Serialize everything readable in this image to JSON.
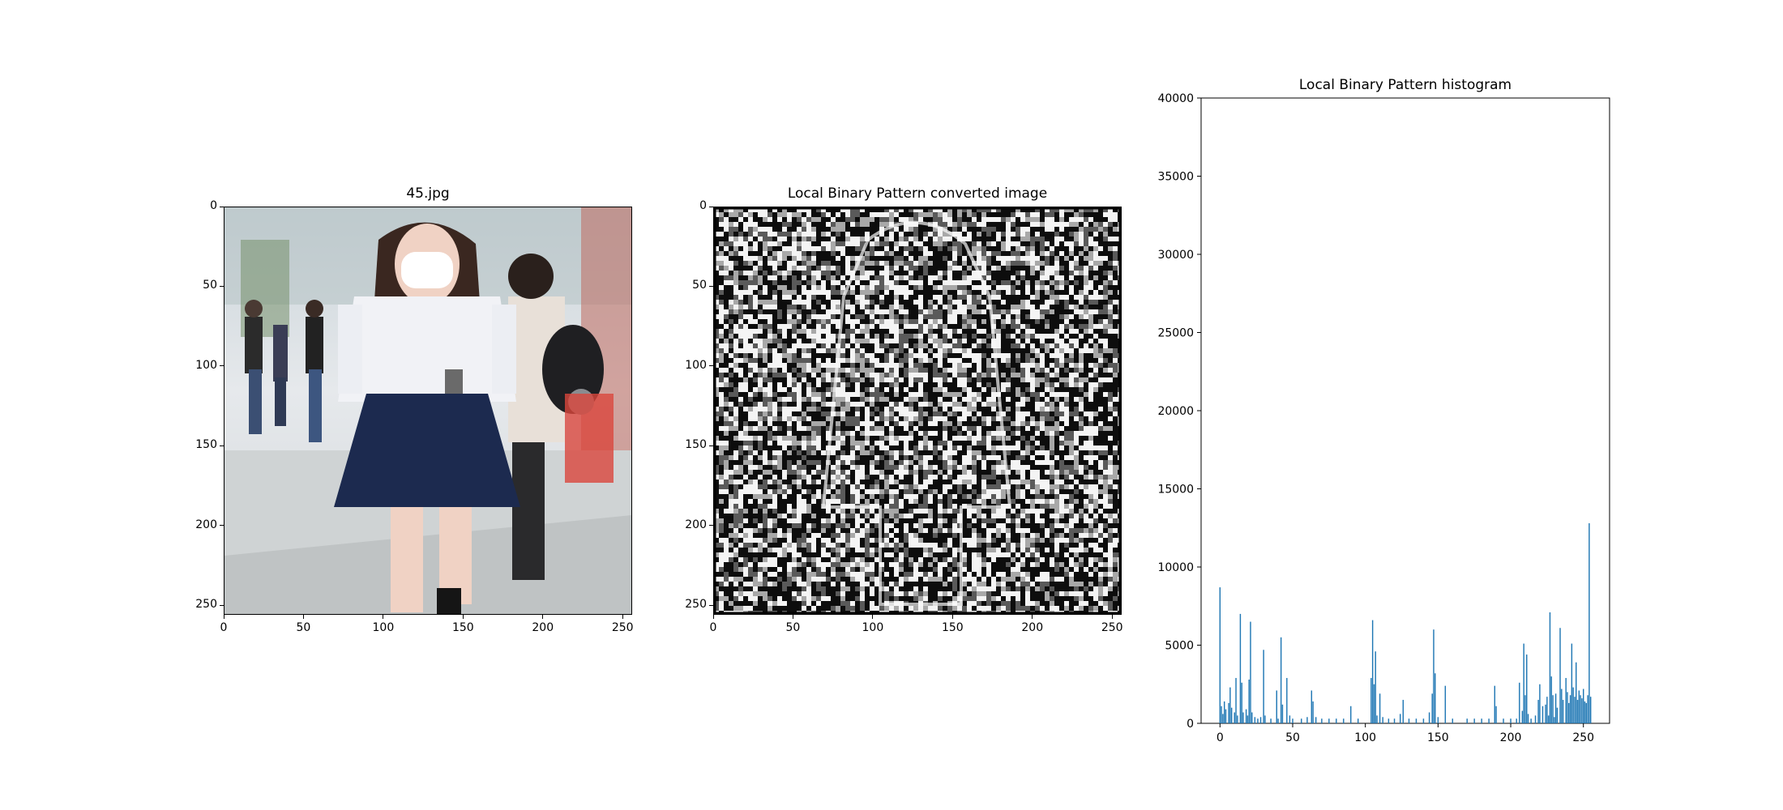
{
  "figure": {
    "panels": [
      {
        "id": "photo",
        "title": "45.jpg",
        "image_description_icon": "photo-image",
        "xticks": [
          "0",
          "50",
          "100",
          "150",
          "200",
          "250"
        ],
        "yticks": [
          "0",
          "50",
          "100",
          "150",
          "200",
          "250"
        ]
      },
      {
        "id": "lbp",
        "title": "Local Binary Pattern converted image",
        "image_description_icon": "lbp-texture-image",
        "xticks": [
          "0",
          "50",
          "100",
          "150",
          "200",
          "250"
        ],
        "yticks": [
          "0",
          "50",
          "100",
          "150",
          "200",
          "250"
        ]
      }
    ],
    "colors": {
      "bar": "#1f77b4",
      "skirt": "#1c2a4f",
      "shirt": "#f1f2f6",
      "hair": "#3a2720",
      "skin": "#f0d2c4",
      "floor": "#d9dde0"
    }
  },
  "chart_data": {
    "type": "bar",
    "title": "Local Binary Pattern histogram",
    "xlabel": "",
    "ylabel": "",
    "xlim": [
      -13,
      268
    ],
    "ylim": [
      0,
      40000
    ],
    "xticks": [
      0,
      50,
      100,
      150,
      200,
      250
    ],
    "yticks": [
      0,
      5000,
      10000,
      15000,
      20000,
      25000,
      30000,
      35000,
      40000
    ],
    "grid": false,
    "bins": [
      {
        "x": 0,
        "value": 8700
      },
      {
        "x": 1,
        "value": 1100
      },
      {
        "x": 2,
        "value": 600
      },
      {
        "x": 3,
        "value": 1400
      },
      {
        "x": 4,
        "value": 900
      },
      {
        "x": 6,
        "value": 1300
      },
      {
        "x": 7,
        "value": 2300
      },
      {
        "x": 8,
        "value": 1000
      },
      {
        "x": 10,
        "value": 700
      },
      {
        "x": 11,
        "value": 2900
      },
      {
        "x": 12,
        "value": 500
      },
      {
        "x": 14,
        "value": 7000
      },
      {
        "x": 15,
        "value": 2600
      },
      {
        "x": 16,
        "value": 700
      },
      {
        "x": 18,
        "value": 900
      },
      {
        "x": 19,
        "value": 500
      },
      {
        "x": 20,
        "value": 2800
      },
      {
        "x": 21,
        "value": 6500
      },
      {
        "x": 22,
        "value": 700
      },
      {
        "x": 24,
        "value": 400
      },
      {
        "x": 26,
        "value": 300
      },
      {
        "x": 28,
        "value": 400
      },
      {
        "x": 30,
        "value": 4700
      },
      {
        "x": 31,
        "value": 500
      },
      {
        "x": 35,
        "value": 300
      },
      {
        "x": 39,
        "value": 2100
      },
      {
        "x": 40,
        "value": 300
      },
      {
        "x": 42,
        "value": 5500
      },
      {
        "x": 43,
        "value": 1200
      },
      {
        "x": 46,
        "value": 2900
      },
      {
        "x": 48,
        "value": 500
      },
      {
        "x": 50,
        "value": 300
      },
      {
        "x": 56,
        "value": 300
      },
      {
        "x": 60,
        "value": 400
      },
      {
        "x": 63,
        "value": 2100
      },
      {
        "x": 64,
        "value": 1400
      },
      {
        "x": 66,
        "value": 400
      },
      {
        "x": 70,
        "value": 300
      },
      {
        "x": 75,
        "value": 300
      },
      {
        "x": 80,
        "value": 300
      },
      {
        "x": 85,
        "value": 300
      },
      {
        "x": 90,
        "value": 1100
      },
      {
        "x": 95,
        "value": 300
      },
      {
        "x": 104,
        "value": 2900
      },
      {
        "x": 105,
        "value": 6600
      },
      {
        "x": 106,
        "value": 2500
      },
      {
        "x": 107,
        "value": 4600
      },
      {
        "x": 108,
        "value": 500
      },
      {
        "x": 110,
        "value": 1900
      },
      {
        "x": 112,
        "value": 400
      },
      {
        "x": 116,
        "value": 300
      },
      {
        "x": 120,
        "value": 300
      },
      {
        "x": 124,
        "value": 600
      },
      {
        "x": 126,
        "value": 1500
      },
      {
        "x": 130,
        "value": 300
      },
      {
        "x": 135,
        "value": 300
      },
      {
        "x": 140,
        "value": 300
      },
      {
        "x": 144,
        "value": 700
      },
      {
        "x": 146,
        "value": 1900
      },
      {
        "x": 147,
        "value": 6000
      },
      {
        "x": 148,
        "value": 3200
      },
      {
        "x": 150,
        "value": 400
      },
      {
        "x": 155,
        "value": 2400
      },
      {
        "x": 160,
        "value": 300
      },
      {
        "x": 170,
        "value": 300
      },
      {
        "x": 175,
        "value": 300
      },
      {
        "x": 180,
        "value": 300
      },
      {
        "x": 185,
        "value": 300
      },
      {
        "x": 189,
        "value": 2400
      },
      {
        "x": 190,
        "value": 1100
      },
      {
        "x": 195,
        "value": 300
      },
      {
        "x": 200,
        "value": 300
      },
      {
        "x": 204,
        "value": 300
      },
      {
        "x": 206,
        "value": 2600
      },
      {
        "x": 208,
        "value": 800
      },
      {
        "x": 209,
        "value": 5100
      },
      {
        "x": 210,
        "value": 1800
      },
      {
        "x": 211,
        "value": 4400
      },
      {
        "x": 212,
        "value": 600
      },
      {
        "x": 214,
        "value": 300
      },
      {
        "x": 217,
        "value": 500
      },
      {
        "x": 219,
        "value": 1500
      },
      {
        "x": 220,
        "value": 2500
      },
      {
        "x": 222,
        "value": 1100
      },
      {
        "x": 224,
        "value": 1200
      },
      {
        "x": 225,
        "value": 1700
      },
      {
        "x": 226,
        "value": 500
      },
      {
        "x": 227,
        "value": 7100
      },
      {
        "x": 228,
        "value": 3000
      },
      {
        "x": 229,
        "value": 1800
      },
      {
        "x": 230,
        "value": 400
      },
      {
        "x": 231,
        "value": 1900
      },
      {
        "x": 232,
        "value": 1000
      },
      {
        "x": 234,
        "value": 6100
      },
      {
        "x": 235,
        "value": 2200
      },
      {
        "x": 236,
        "value": 1500
      },
      {
        "x": 238,
        "value": 2900
      },
      {
        "x": 239,
        "value": 2000
      },
      {
        "x": 240,
        "value": 1300
      },
      {
        "x": 241,
        "value": 1800
      },
      {
        "x": 242,
        "value": 5100
      },
      {
        "x": 243,
        "value": 2300
      },
      {
        "x": 244,
        "value": 1700
      },
      {
        "x": 245,
        "value": 3900
      },
      {
        "x": 246,
        "value": 1500
      },
      {
        "x": 247,
        "value": 2100
      },
      {
        "x": 248,
        "value": 1800
      },
      {
        "x": 249,
        "value": 1600
      },
      {
        "x": 250,
        "value": 2200
      },
      {
        "x": 251,
        "value": 1400
      },
      {
        "x": 252,
        "value": 1300
      },
      {
        "x": 253,
        "value": 1800
      },
      {
        "x": 254,
        "value": 12800
      },
      {
        "x": 255,
        "value": 1700
      }
    ]
  }
}
